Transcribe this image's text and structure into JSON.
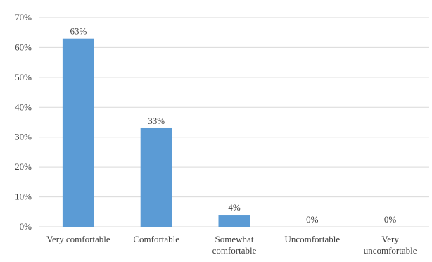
{
  "chart_data": {
    "type": "bar",
    "categories": [
      [
        "Very comfortable"
      ],
      [
        "Comfortable"
      ],
      [
        "Somewhat",
        "comfortable"
      ],
      [
        "Uncomfortable"
      ],
      [
        "Very",
        "uncomfortable"
      ]
    ],
    "values": [
      63,
      33,
      4,
      0,
      0
    ],
    "data_labels": [
      "63%",
      "33%",
      "4%",
      "0%",
      "0%"
    ],
    "y_ticks": [
      "0%",
      "10%",
      "20%",
      "30%",
      "40%",
      "50%",
      "60%",
      "70%"
    ],
    "ylim": [
      0,
      70
    ],
    "grid": true,
    "bar_color": "#5b9bd5",
    "grid_color": "#d9d9d9",
    "title": "",
    "xlabel": "",
    "ylabel": ""
  }
}
